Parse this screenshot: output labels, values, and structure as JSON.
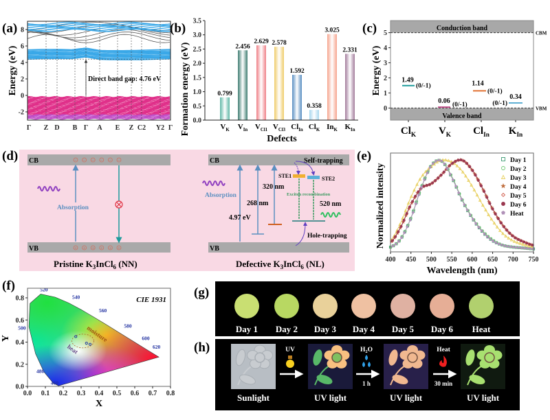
{
  "panels": {
    "a": {
      "label": "(a)"
    },
    "b": {
      "label": "(b)"
    },
    "c": {
      "label": "(c)"
    },
    "d": {
      "label": "(d)"
    },
    "e": {
      "label": "(e)"
    },
    "f": {
      "label": "(f)"
    },
    "g": {
      "label": "(g)"
    },
    "h": {
      "label": "(h)"
    }
  },
  "chart_data": [
    {
      "id": "a",
      "type": "line",
      "ylabel": "Energy (eV)",
      "ylim": [
        -3,
        9
      ],
      "yticks": [
        -2,
        0,
        2,
        4,
        6,
        8
      ],
      "kpoints": [
        "Γ",
        "Z",
        "D",
        "B",
        "Γ",
        "A",
        "E",
        "Z",
        "C2",
        "Y2",
        "Γ"
      ],
      "annotation": "Direct band gap: 4.76 eV",
      "band_gap_ev": 4.76,
      "colors": {
        "conduction": "#3aa8e8",
        "valence": "#e0308a",
        "upper": "#555555"
      }
    },
    {
      "id": "b",
      "type": "bar",
      "xlabel": "Defects",
      "ylabel": "Formation energy (eV)",
      "ylim": [
        0,
        3.5
      ],
      "yticks": [
        "0.0",
        "0.5",
        "1.0",
        "1.5",
        "2.0",
        "2.5",
        "3.0",
        "3.5"
      ],
      "categories": [
        {
          "main": "V",
          "sub": "K"
        },
        {
          "main": "V",
          "sub": "In"
        },
        {
          "main": "V",
          "sub": "Cl1"
        },
        {
          "main": "V",
          "sub": "Cl3"
        },
        {
          "main": "Cl",
          "sub": "In"
        },
        {
          "main": "Cl",
          "sub": "K"
        },
        {
          "main": "In",
          "sub": "K"
        },
        {
          "main": "K",
          "sub": "In"
        }
      ],
      "values": [
        0.799,
        2.456,
        2.629,
        2.578,
        1.592,
        0.358,
        3.025,
        2.331
      ],
      "value_labels": [
        "0.799",
        "2.456",
        "2.629",
        "2.578",
        "1.592",
        "0.358",
        "3.025",
        "2.331"
      ],
      "colors": [
        "#5fb8a6",
        "#3f7d72",
        "#ef7f86",
        "#efcc6a",
        "#5a8fc2",
        "#a6d6ee",
        "#f6a48e",
        "#a37c9c"
      ]
    },
    {
      "id": "c",
      "type": "scatter",
      "ylabel": "Energy (eV)",
      "ylim": [
        -0.8,
        5.8
      ],
      "yticks": [
        "0",
        "1",
        "2",
        "3",
        "4",
        "5"
      ],
      "cbm": 5,
      "vbm": 0,
      "cbm_label": "CBM",
      "vbm_label": "VBM",
      "conduction_label": "Conduction band",
      "valence_label": "Valence band",
      "categories": [
        {
          "main": "Cl",
          "sub": "K"
        },
        {
          "main": "V",
          "sub": "K"
        },
        {
          "main": "Cl",
          "sub": "In"
        },
        {
          "main": "K",
          "sub": "In"
        }
      ],
      "levels": [
        1.49,
        0.06,
        1.14,
        0.34
      ],
      "level_labels": [
        "1.49",
        "0.06",
        "1.14",
        "0.34"
      ],
      "transition": "(0/-1)",
      "colors": [
        "#1d9b9b",
        "#c0508a",
        "#e07030",
        "#5fb0d4"
      ]
    },
    {
      "id": "e",
      "type": "line",
      "xlabel": "Wavelength (nm)",
      "ylabel": "Normalized intensity",
      "xlim": [
        400,
        750
      ],
      "xticks": [
        "400",
        "450",
        "500",
        "550",
        "600",
        "650",
        "700",
        "750"
      ],
      "x": [
        400,
        425,
        450,
        475,
        500,
        525,
        550,
        575,
        600,
        625,
        650,
        675,
        700,
        725,
        750
      ],
      "series": [
        {
          "name": "Day 1",
          "marker": "square",
          "color": "#3a9a70",
          "values": [
            0.03,
            0.12,
            0.35,
            0.68,
            0.93,
            0.98,
            0.8,
            0.55,
            0.35,
            0.2,
            0.1,
            0.05,
            0.03,
            0.02,
            0.01
          ]
        },
        {
          "name": "Day 2",
          "marker": "circle",
          "color": "#6cc870",
          "values": [
            0.03,
            0.12,
            0.35,
            0.68,
            0.93,
            0.98,
            0.81,
            0.56,
            0.36,
            0.21,
            0.11,
            0.05,
            0.03,
            0.02,
            0.01
          ]
        },
        {
          "name": "Day 3",
          "marker": "triangle",
          "color": "#e8d060",
          "values": [
            0.1,
            0.3,
            0.58,
            0.8,
            0.92,
            0.99,
            0.97,
            0.87,
            0.7,
            0.5,
            0.32,
            0.18,
            0.1,
            0.06,
            0.03
          ]
        },
        {
          "name": "Day 4",
          "marker": "star",
          "color": "#c07040",
          "values": [
            0.08,
            0.25,
            0.5,
            0.68,
            0.73,
            0.83,
            0.95,
            0.99,
            0.88,
            0.68,
            0.45,
            0.27,
            0.15,
            0.09,
            0.05
          ]
        },
        {
          "name": "Day 5",
          "marker": "diamond",
          "color": "#d06050",
          "values": [
            0.08,
            0.25,
            0.5,
            0.68,
            0.73,
            0.83,
            0.95,
            0.99,
            0.88,
            0.68,
            0.45,
            0.27,
            0.15,
            0.09,
            0.05
          ]
        },
        {
          "name": "Day 6",
          "marker": "circle-filled",
          "color": "#9a3850",
          "values": [
            0.08,
            0.25,
            0.5,
            0.68,
            0.73,
            0.83,
            0.95,
            0.99,
            0.88,
            0.68,
            0.45,
            0.27,
            0.15,
            0.09,
            0.05
          ]
        },
        {
          "name": "Heat",
          "marker": "pentagon",
          "color": "#b090b8",
          "values": [
            0.03,
            0.12,
            0.35,
            0.68,
            0.93,
            0.98,
            0.8,
            0.55,
            0.35,
            0.2,
            0.1,
            0.05,
            0.03,
            0.02,
            0.01
          ]
        }
      ],
      "legend": "top-right"
    },
    {
      "id": "f",
      "type": "scatter",
      "title": "CIE 1931",
      "xlabel": "X",
      "ylabel": "Y",
      "xlim": [
        0,
        0.8
      ],
      "ylim": [
        0,
        0.88
      ],
      "xticks": [
        "0.0",
        "0.1",
        "0.2",
        "0.3",
        "0.4",
        "0.5",
        "0.6",
        "0.7",
        "0.8"
      ],
      "yticks": [
        "0.0",
        "0.2",
        "0.4",
        "0.6",
        "0.8"
      ],
      "wavelength_labels": [
        {
          "text": "460",
          "x": 0.13,
          "y": 0.015
        },
        {
          "text": "480",
          "x": 0.05,
          "y": 0.12
        },
        {
          "text": "500",
          "x": -0.03,
          "y": 0.56
        },
        {
          "text": "520",
          "x": 0.07,
          "y": 0.86
        },
        {
          "text": "540",
          "x": 0.25,
          "y": 0.79
        },
        {
          "text": "560",
          "x": 0.4,
          "y": 0.67
        },
        {
          "text": "580",
          "x": 0.54,
          "y": 0.53
        },
        {
          "text": "600",
          "x": 0.64,
          "y": 0.42
        },
        {
          "text": "620",
          "x": 0.7,
          "y": 0.34
        }
      ],
      "annotations": {
        "moisture": "moisture",
        "heat": "heat"
      },
      "points": [
        [
          0.27,
          0.45
        ],
        [
          0.33,
          0.39
        ],
        [
          0.35,
          0.38
        ]
      ],
      "cycle_colors": {
        "moisture": "#b06020",
        "heat": "#6a4a8a"
      }
    }
  ],
  "diagram_d": {
    "background": "#f9d9e4",
    "pristine": {
      "cb": "CB",
      "vb": "VB",
      "absorption": "Absorption",
      "caption": {
        "a": "Pristine K",
        "s1": "3",
        "b": "InCl",
        "s2": "6",
        "c": " (NN)"
      }
    },
    "defective": {
      "cb": "CB",
      "vb": "VB",
      "absorption": "Absorption",
      "self_trapping": "Self-trapping",
      "ste1": "STE1",
      "ste2": "STE2",
      "nm320": "320 nm",
      "nm268": "268 nm",
      "ev497": "4.97 eV",
      "exciton": "Exciton recombination",
      "nm520": "520 nm",
      "hole_trapping": "Hole-trapping",
      "caption": {
        "a": "Defective K",
        "s1": "3",
        "b": "InCl",
        "s2": "6",
        "c": " (NL)"
      }
    }
  },
  "panel_g": {
    "samples": [
      {
        "label": "Day 1",
        "color": "#c9df72"
      },
      {
        "label": "Day 2",
        "color": "#b8d862"
      },
      {
        "label": "Day 3",
        "color": "#e9d19a"
      },
      {
        "label": "Day 4",
        "color": "#efc1a2"
      },
      {
        "label": "Day 5",
        "color": "#dfb1a2"
      },
      {
        "label": "Day 6",
        "color": "#e6ae96"
      },
      {
        "label": "Heat",
        "color": "#b1d06e"
      }
    ]
  },
  "panel_h": {
    "images": [
      {
        "label": "Sunlight",
        "petal": "#c8ccd0",
        "leaf": "#c8ccd0",
        "bg": "#b8bec4"
      },
      {
        "label": "UV light",
        "petal": "#f8c080",
        "leaf": "#58b868",
        "bg": "#1a1a3a"
      },
      {
        "label": "UV light",
        "petal": "#f0b890",
        "leaf": "#f0b890",
        "bg": "#28204a"
      },
      {
        "label": "UV light",
        "petal": "#a8e070",
        "leaf": "#a8e070",
        "bg": "#101a10"
      }
    ],
    "steps": [
      {
        "top": "UV",
        "bottom": "",
        "icon": "lightbulb-icon"
      },
      {
        "top": "H",
        "top_sub": "2",
        "top_end": "O",
        "bottom": "1 h",
        "icon": "water-drops-icon"
      },
      {
        "top": "Heat",
        "bottom": "30 min",
        "icon": "flame-icon"
      }
    ]
  }
}
